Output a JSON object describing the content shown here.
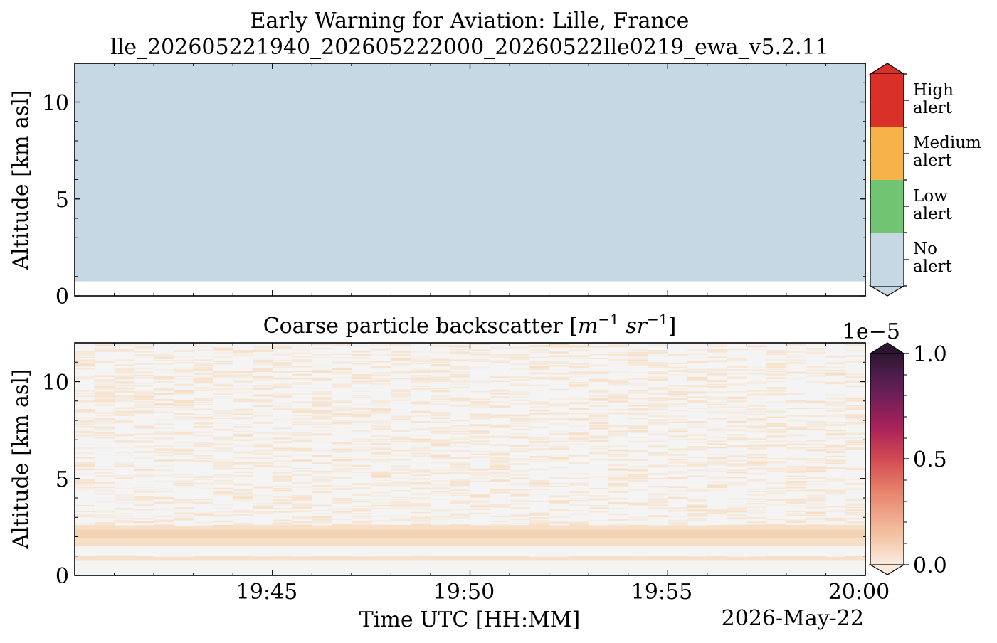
{
  "chart_data": [
    {
      "type": "heatmap",
      "title": "Early Warning for Aviation: Lille, France",
      "subtitle": "lle_202605221940_202605222000_20260522lle0219_ewa_v5.2.11",
      "ylabel": "Altitude [km asl]",
      "ylim": [
        0,
        12
      ],
      "y_ticks": [
        "0",
        "5",
        "10"
      ],
      "x_range": [
        "19:40",
        "20:00"
      ],
      "data_bottom_km": 0.75,
      "data_top_km": 12,
      "fill_category": "No alert",
      "colorbar": {
        "categories": [
          {
            "lines": [
              "No",
              "alert"
            ],
            "color": "#c6d8e4"
          },
          {
            "lines": [
              "Low",
              "alert"
            ],
            "color": "#71c472"
          },
          {
            "lines": [
              "Medium",
              "alert"
            ],
            "color": "#f6b34a"
          },
          {
            "lines": [
              "High",
              "alert"
            ],
            "color": "#d93128"
          }
        ],
        "extend": "both"
      }
    },
    {
      "type": "heatmap",
      "title_text": "Coarse particle backscatter ",
      "title_math": [
        "m",
        "−1",
        " sr",
        "−1"
      ],
      "ylabel": "Altitude [km asl]",
      "xlabel": "Time UTC [HH:MM]",
      "date_label": "2026-May-22",
      "ylim": [
        0,
        12
      ],
      "y_ticks": [
        "0",
        "5",
        "10"
      ],
      "x_range": [
        "19:40",
        "20:00"
      ],
      "x_ticks": [
        "19:45",
        "19:50",
        "19:55",
        "20:00"
      ],
      "colorbar": {
        "min": 0.0,
        "max": 1.0,
        "ticks": [
          "0.0",
          "0.5",
          "1.0"
        ],
        "scale_label": "1e−5",
        "colormap": "rocket_r",
        "extend": "both"
      },
      "layers_km": [
        {
          "bottom": 0.75,
          "top": 1.0,
          "value": 0.03
        },
        {
          "bottom": 1.5,
          "top": 2.6,
          "value": 0.05
        }
      ],
      "noise_range_km": [
        2.6,
        12.0
      ]
    }
  ]
}
